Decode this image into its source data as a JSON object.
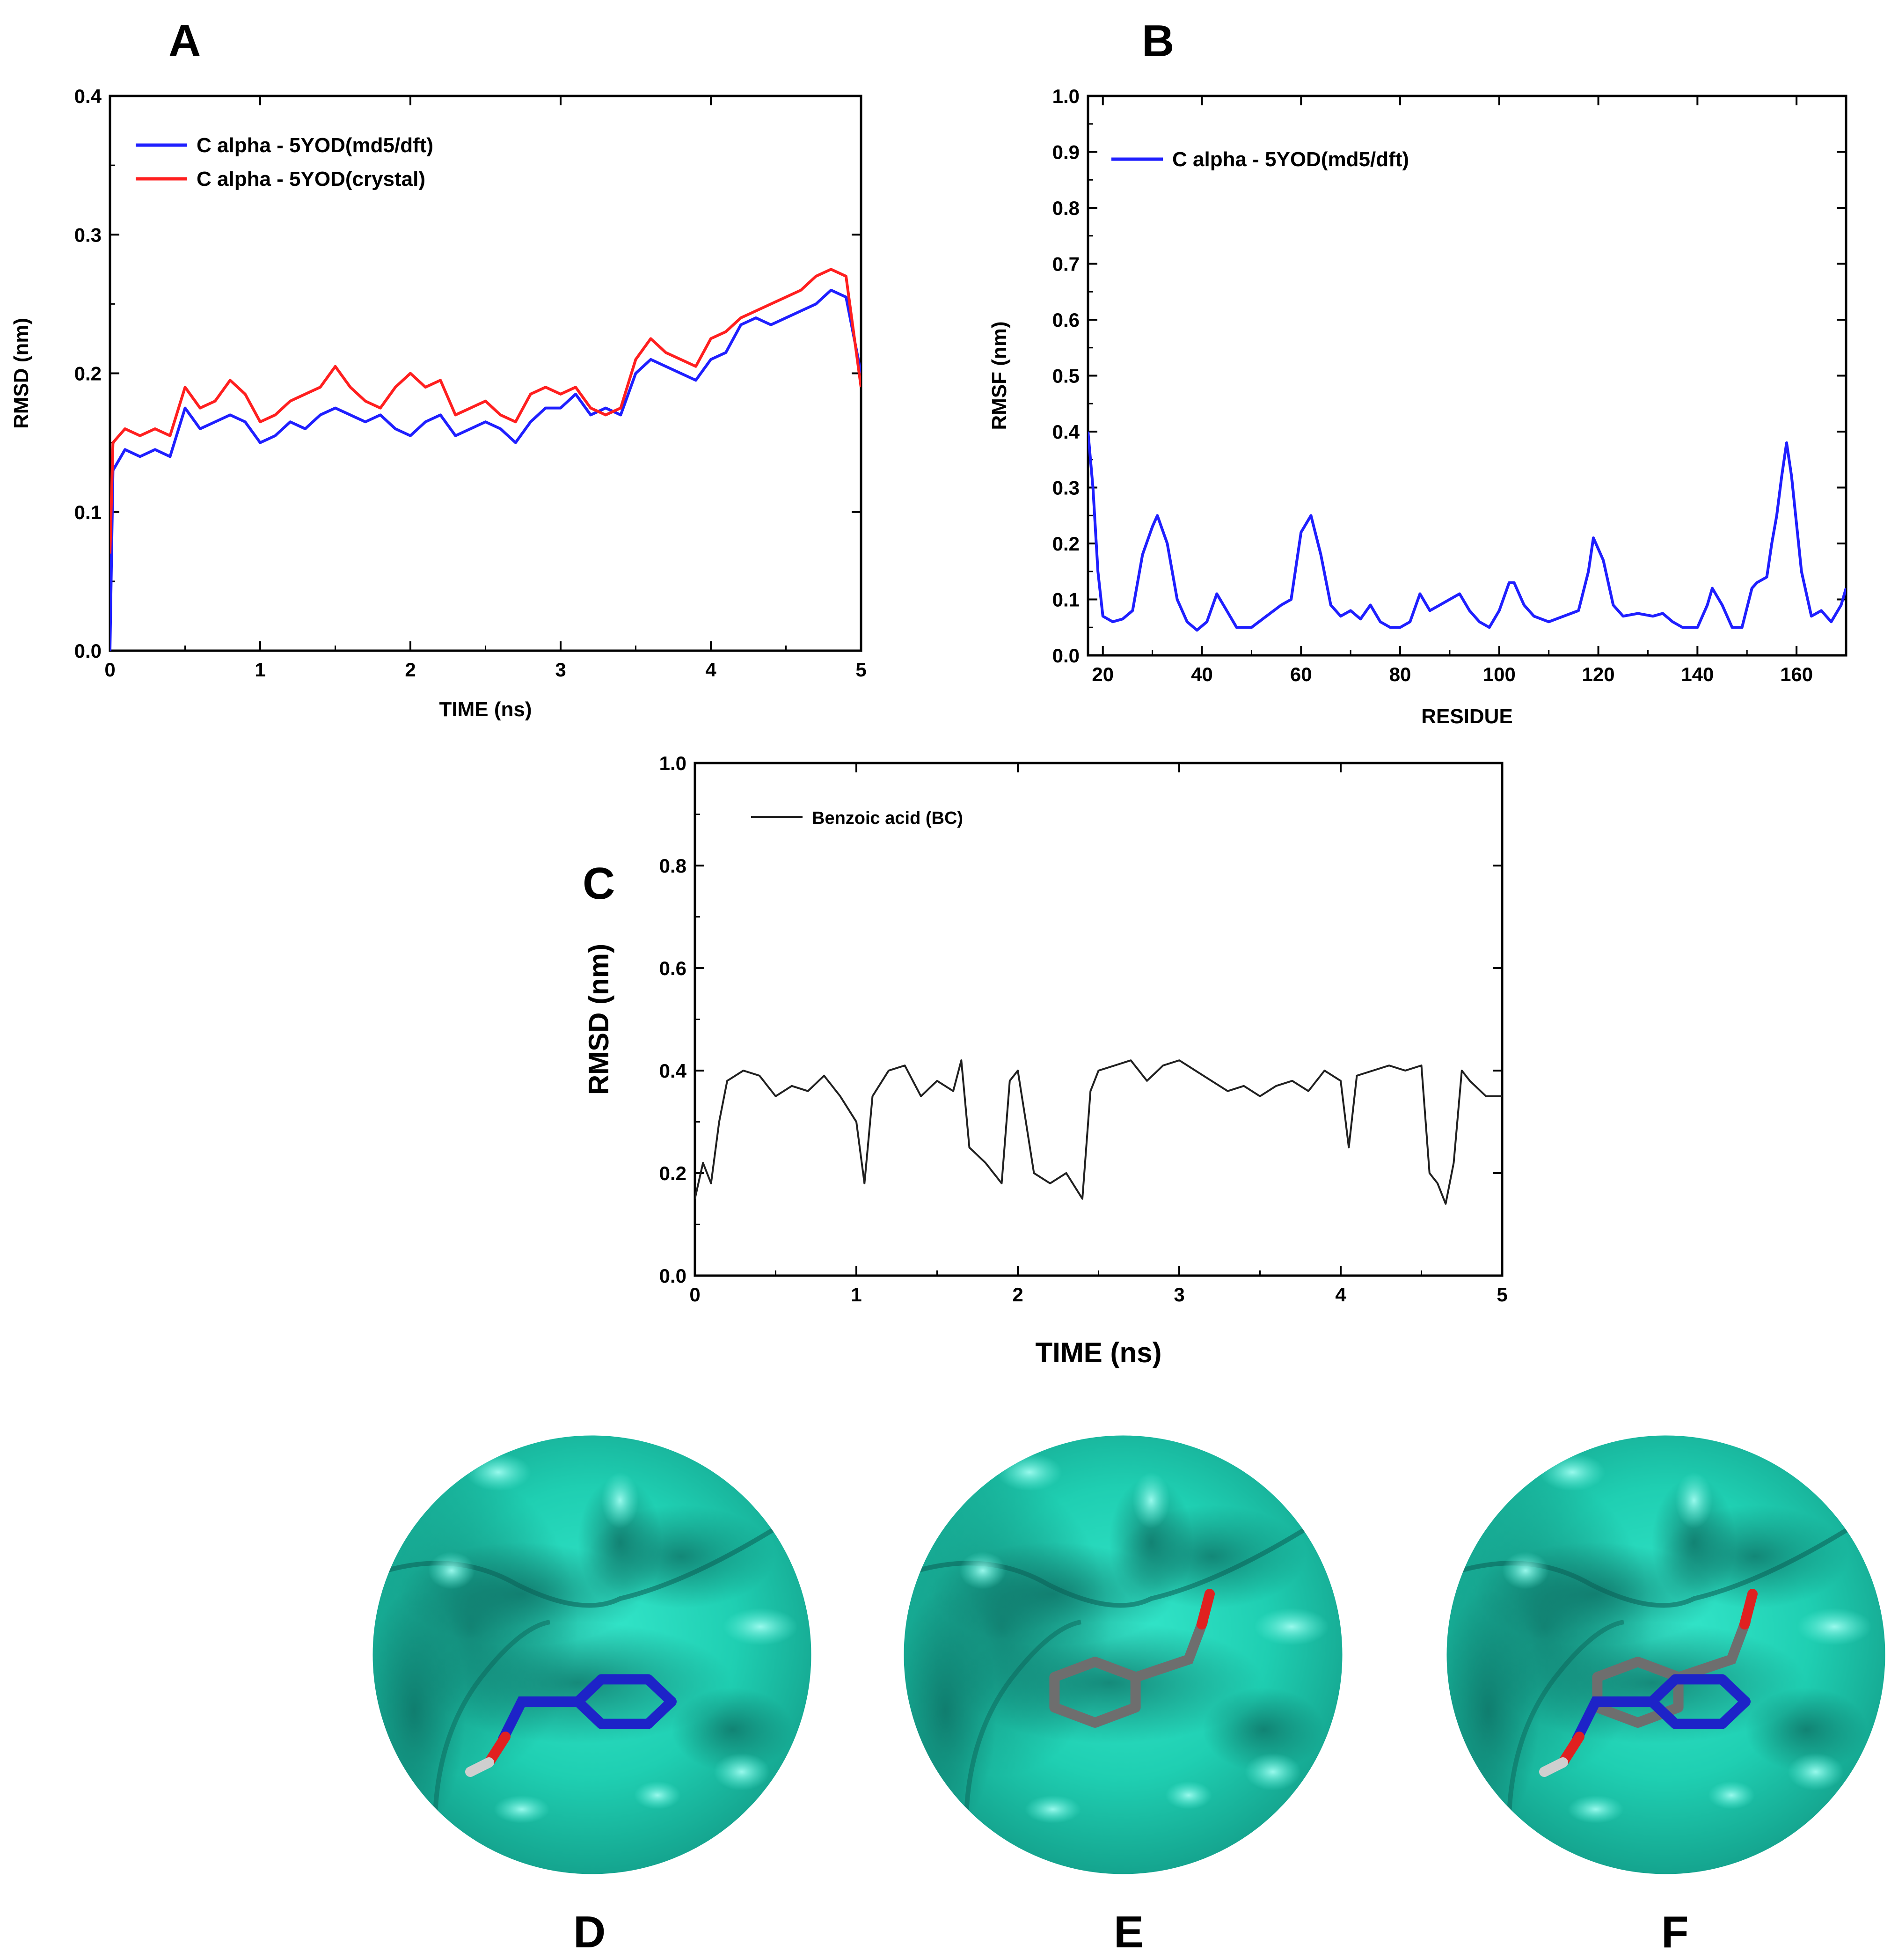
{
  "figure": {
    "panel_letters": {
      "a": "A",
      "b": "B",
      "c": "C",
      "d": "D",
      "e": "E",
      "f": "F"
    }
  },
  "chart_data": [
    {
      "id": "A",
      "type": "line",
      "xlabel": "TIME (ns)",
      "ylabel": "RMSD (nm)",
      "xlim": [
        0,
        5
      ],
      "ylim": [
        0.0,
        0.4
      ],
      "xticks": [
        "0",
        "1",
        "2",
        "3",
        "4",
        "5"
      ],
      "yticks": [
        "0.0",
        "0.1",
        "0.2",
        "0.3",
        "0.4"
      ],
      "legend_position": "top-left",
      "series": [
        {
          "name": "C alpha - 5YOD(md5/dft)",
          "color": "#1f1fff",
          "x": [
            0,
            0.02,
            0.1,
            0.2,
            0.3,
            0.4,
            0.5,
            0.6,
            0.7,
            0.8,
            0.9,
            1.0,
            1.1,
            1.2,
            1.3,
            1.4,
            1.5,
            1.6,
            1.7,
            1.8,
            1.9,
            2.0,
            2.1,
            2.2,
            2.3,
            2.4,
            2.5,
            2.6,
            2.7,
            2.8,
            2.9,
            3.0,
            3.1,
            3.2,
            3.3,
            3.4,
            3.5,
            3.6,
            3.7,
            3.8,
            3.9,
            4.0,
            4.1,
            4.2,
            4.3,
            4.4,
            4.5,
            4.6,
            4.7,
            4.8,
            4.9,
            5.0
          ],
          "y": [
            0.0,
            0.13,
            0.145,
            0.14,
            0.145,
            0.14,
            0.175,
            0.16,
            0.165,
            0.17,
            0.165,
            0.15,
            0.155,
            0.165,
            0.16,
            0.17,
            0.175,
            0.17,
            0.165,
            0.17,
            0.16,
            0.155,
            0.165,
            0.17,
            0.155,
            0.16,
            0.165,
            0.16,
            0.15,
            0.165,
            0.175,
            0.175,
            0.185,
            0.17,
            0.175,
            0.17,
            0.2,
            0.21,
            0.205,
            0.2,
            0.195,
            0.21,
            0.215,
            0.235,
            0.24,
            0.235,
            0.24,
            0.245,
            0.25,
            0.26,
            0.255,
            0.2
          ]
        },
        {
          "name": "C alpha - 5YOD(crystal)",
          "color": "#ff1f1f",
          "x": [
            0,
            0.02,
            0.1,
            0.2,
            0.3,
            0.4,
            0.5,
            0.6,
            0.7,
            0.8,
            0.9,
            1.0,
            1.1,
            1.2,
            1.3,
            1.4,
            1.5,
            1.6,
            1.7,
            1.8,
            1.9,
            2.0,
            2.1,
            2.2,
            2.3,
            2.4,
            2.5,
            2.6,
            2.7,
            2.8,
            2.9,
            3.0,
            3.1,
            3.2,
            3.3,
            3.4,
            3.5,
            3.6,
            3.7,
            3.8,
            3.9,
            4.0,
            4.1,
            4.2,
            4.3,
            4.4,
            4.5,
            4.6,
            4.7,
            4.8,
            4.9,
            5.0
          ],
          "y": [
            0.07,
            0.15,
            0.16,
            0.155,
            0.16,
            0.155,
            0.19,
            0.175,
            0.18,
            0.195,
            0.185,
            0.165,
            0.17,
            0.18,
            0.185,
            0.19,
            0.205,
            0.19,
            0.18,
            0.175,
            0.19,
            0.2,
            0.19,
            0.195,
            0.17,
            0.175,
            0.18,
            0.17,
            0.165,
            0.185,
            0.19,
            0.185,
            0.19,
            0.175,
            0.17,
            0.175,
            0.21,
            0.225,
            0.215,
            0.21,
            0.205,
            0.225,
            0.23,
            0.24,
            0.245,
            0.25,
            0.255,
            0.26,
            0.27,
            0.275,
            0.27,
            0.19
          ]
        }
      ]
    },
    {
      "id": "B",
      "type": "line",
      "xlabel": "RESIDUE",
      "ylabel": "RMSF (nm)",
      "xlim": [
        17,
        170
      ],
      "ylim": [
        0.0,
        1.0
      ],
      "xticks": [
        "20",
        "40",
        "60",
        "80",
        "100",
        "120",
        "140",
        "160"
      ],
      "yticks": [
        "0.0",
        "0.1",
        "0.2",
        "0.3",
        "0.4",
        "0.5",
        "0.6",
        "0.7",
        "0.8",
        "0.9",
        "1.0"
      ],
      "legend_position": "top-left",
      "series": [
        {
          "name": "C alpha - 5YOD(md5/dft)",
          "color": "#1f1fff",
          "x": [
            17,
            18,
            19,
            20,
            22,
            24,
            26,
            28,
            30,
            31,
            33,
            35,
            37,
            39,
            41,
            43,
            45,
            47,
            50,
            53,
            56,
            58,
            60,
            62,
            64,
            66,
            68,
            70,
            72,
            74,
            76,
            78,
            80,
            82,
            84,
            86,
            88,
            90,
            92,
            94,
            96,
            98,
            100,
            102,
            103,
            105,
            107,
            110,
            113,
            116,
            118,
            119,
            121,
            123,
            125,
            128,
            131,
            133,
            135,
            137,
            140,
            142,
            143,
            145,
            147,
            149,
            151,
            152,
            154,
            155,
            156,
            157,
            158,
            159,
            161,
            163,
            165,
            167,
            169,
            170
          ],
          "y": [
            0.4,
            0.3,
            0.15,
            0.07,
            0.06,
            0.065,
            0.08,
            0.18,
            0.23,
            0.25,
            0.2,
            0.1,
            0.06,
            0.045,
            0.06,
            0.11,
            0.08,
            0.05,
            0.05,
            0.07,
            0.09,
            0.1,
            0.22,
            0.25,
            0.18,
            0.09,
            0.07,
            0.08,
            0.065,
            0.09,
            0.06,
            0.05,
            0.05,
            0.06,
            0.11,
            0.08,
            0.09,
            0.1,
            0.11,
            0.08,
            0.06,
            0.05,
            0.08,
            0.13,
            0.13,
            0.09,
            0.07,
            0.06,
            0.07,
            0.08,
            0.15,
            0.21,
            0.17,
            0.09,
            0.07,
            0.075,
            0.07,
            0.075,
            0.06,
            0.05,
            0.05,
            0.09,
            0.12,
            0.09,
            0.05,
            0.05,
            0.12,
            0.13,
            0.14,
            0.2,
            0.25,
            0.32,
            0.38,
            0.32,
            0.15,
            0.07,
            0.08,
            0.06,
            0.09,
            0.12
          ]
        }
      ]
    },
    {
      "id": "C",
      "type": "line",
      "xlabel": "TIME (ns)",
      "ylabel": "RMSD (nm)",
      "xlim": [
        0,
        5
      ],
      "ylim": [
        0.0,
        1.0
      ],
      "xticks": [
        "0",
        "1",
        "2",
        "3",
        "4",
        "5"
      ],
      "yticks": [
        "0.0",
        "0.2",
        "0.4",
        "0.6",
        "0.8",
        "1.0"
      ],
      "legend_position": "top-left",
      "series": [
        {
          "name": "Benzoic acid (BC)",
          "color": "#202020",
          "x": [
            0,
            0.05,
            0.1,
            0.15,
            0.2,
            0.3,
            0.4,
            0.5,
            0.6,
            0.7,
            0.8,
            0.9,
            1.0,
            1.05,
            1.1,
            1.2,
            1.3,
            1.4,
            1.5,
            1.6,
            1.65,
            1.7,
            1.8,
            1.9,
            1.95,
            2.0,
            2.05,
            2.1,
            2.2,
            2.3,
            2.4,
            2.45,
            2.5,
            2.6,
            2.7,
            2.8,
            2.9,
            3.0,
            3.1,
            3.2,
            3.3,
            3.4,
            3.5,
            3.6,
            3.7,
            3.8,
            3.9,
            4.0,
            4.05,
            4.1,
            4.2,
            4.3,
            4.4,
            4.5,
            4.55,
            4.6,
            4.65,
            4.7,
            4.75,
            4.8,
            4.9,
            5.0
          ],
          "y": [
            0.15,
            0.22,
            0.18,
            0.3,
            0.38,
            0.4,
            0.39,
            0.35,
            0.37,
            0.36,
            0.39,
            0.35,
            0.3,
            0.18,
            0.35,
            0.4,
            0.41,
            0.35,
            0.38,
            0.36,
            0.42,
            0.25,
            0.22,
            0.18,
            0.38,
            0.4,
            0.3,
            0.2,
            0.18,
            0.2,
            0.15,
            0.36,
            0.4,
            0.41,
            0.42,
            0.38,
            0.41,
            0.42,
            0.4,
            0.38,
            0.36,
            0.37,
            0.35,
            0.37,
            0.38,
            0.36,
            0.4,
            0.38,
            0.25,
            0.39,
            0.4,
            0.41,
            0.4,
            0.41,
            0.2,
            0.18,
            0.14,
            0.22,
            0.4,
            0.38,
            0.35,
            0.35
          ]
        }
      ]
    }
  ],
  "images": [
    {
      "id": "D",
      "ligands": [
        "blue"
      ]
    },
    {
      "id": "E",
      "ligands": [
        "gray"
      ]
    },
    {
      "id": "F",
      "ligands": [
        "gray",
        "blue"
      ]
    }
  ]
}
